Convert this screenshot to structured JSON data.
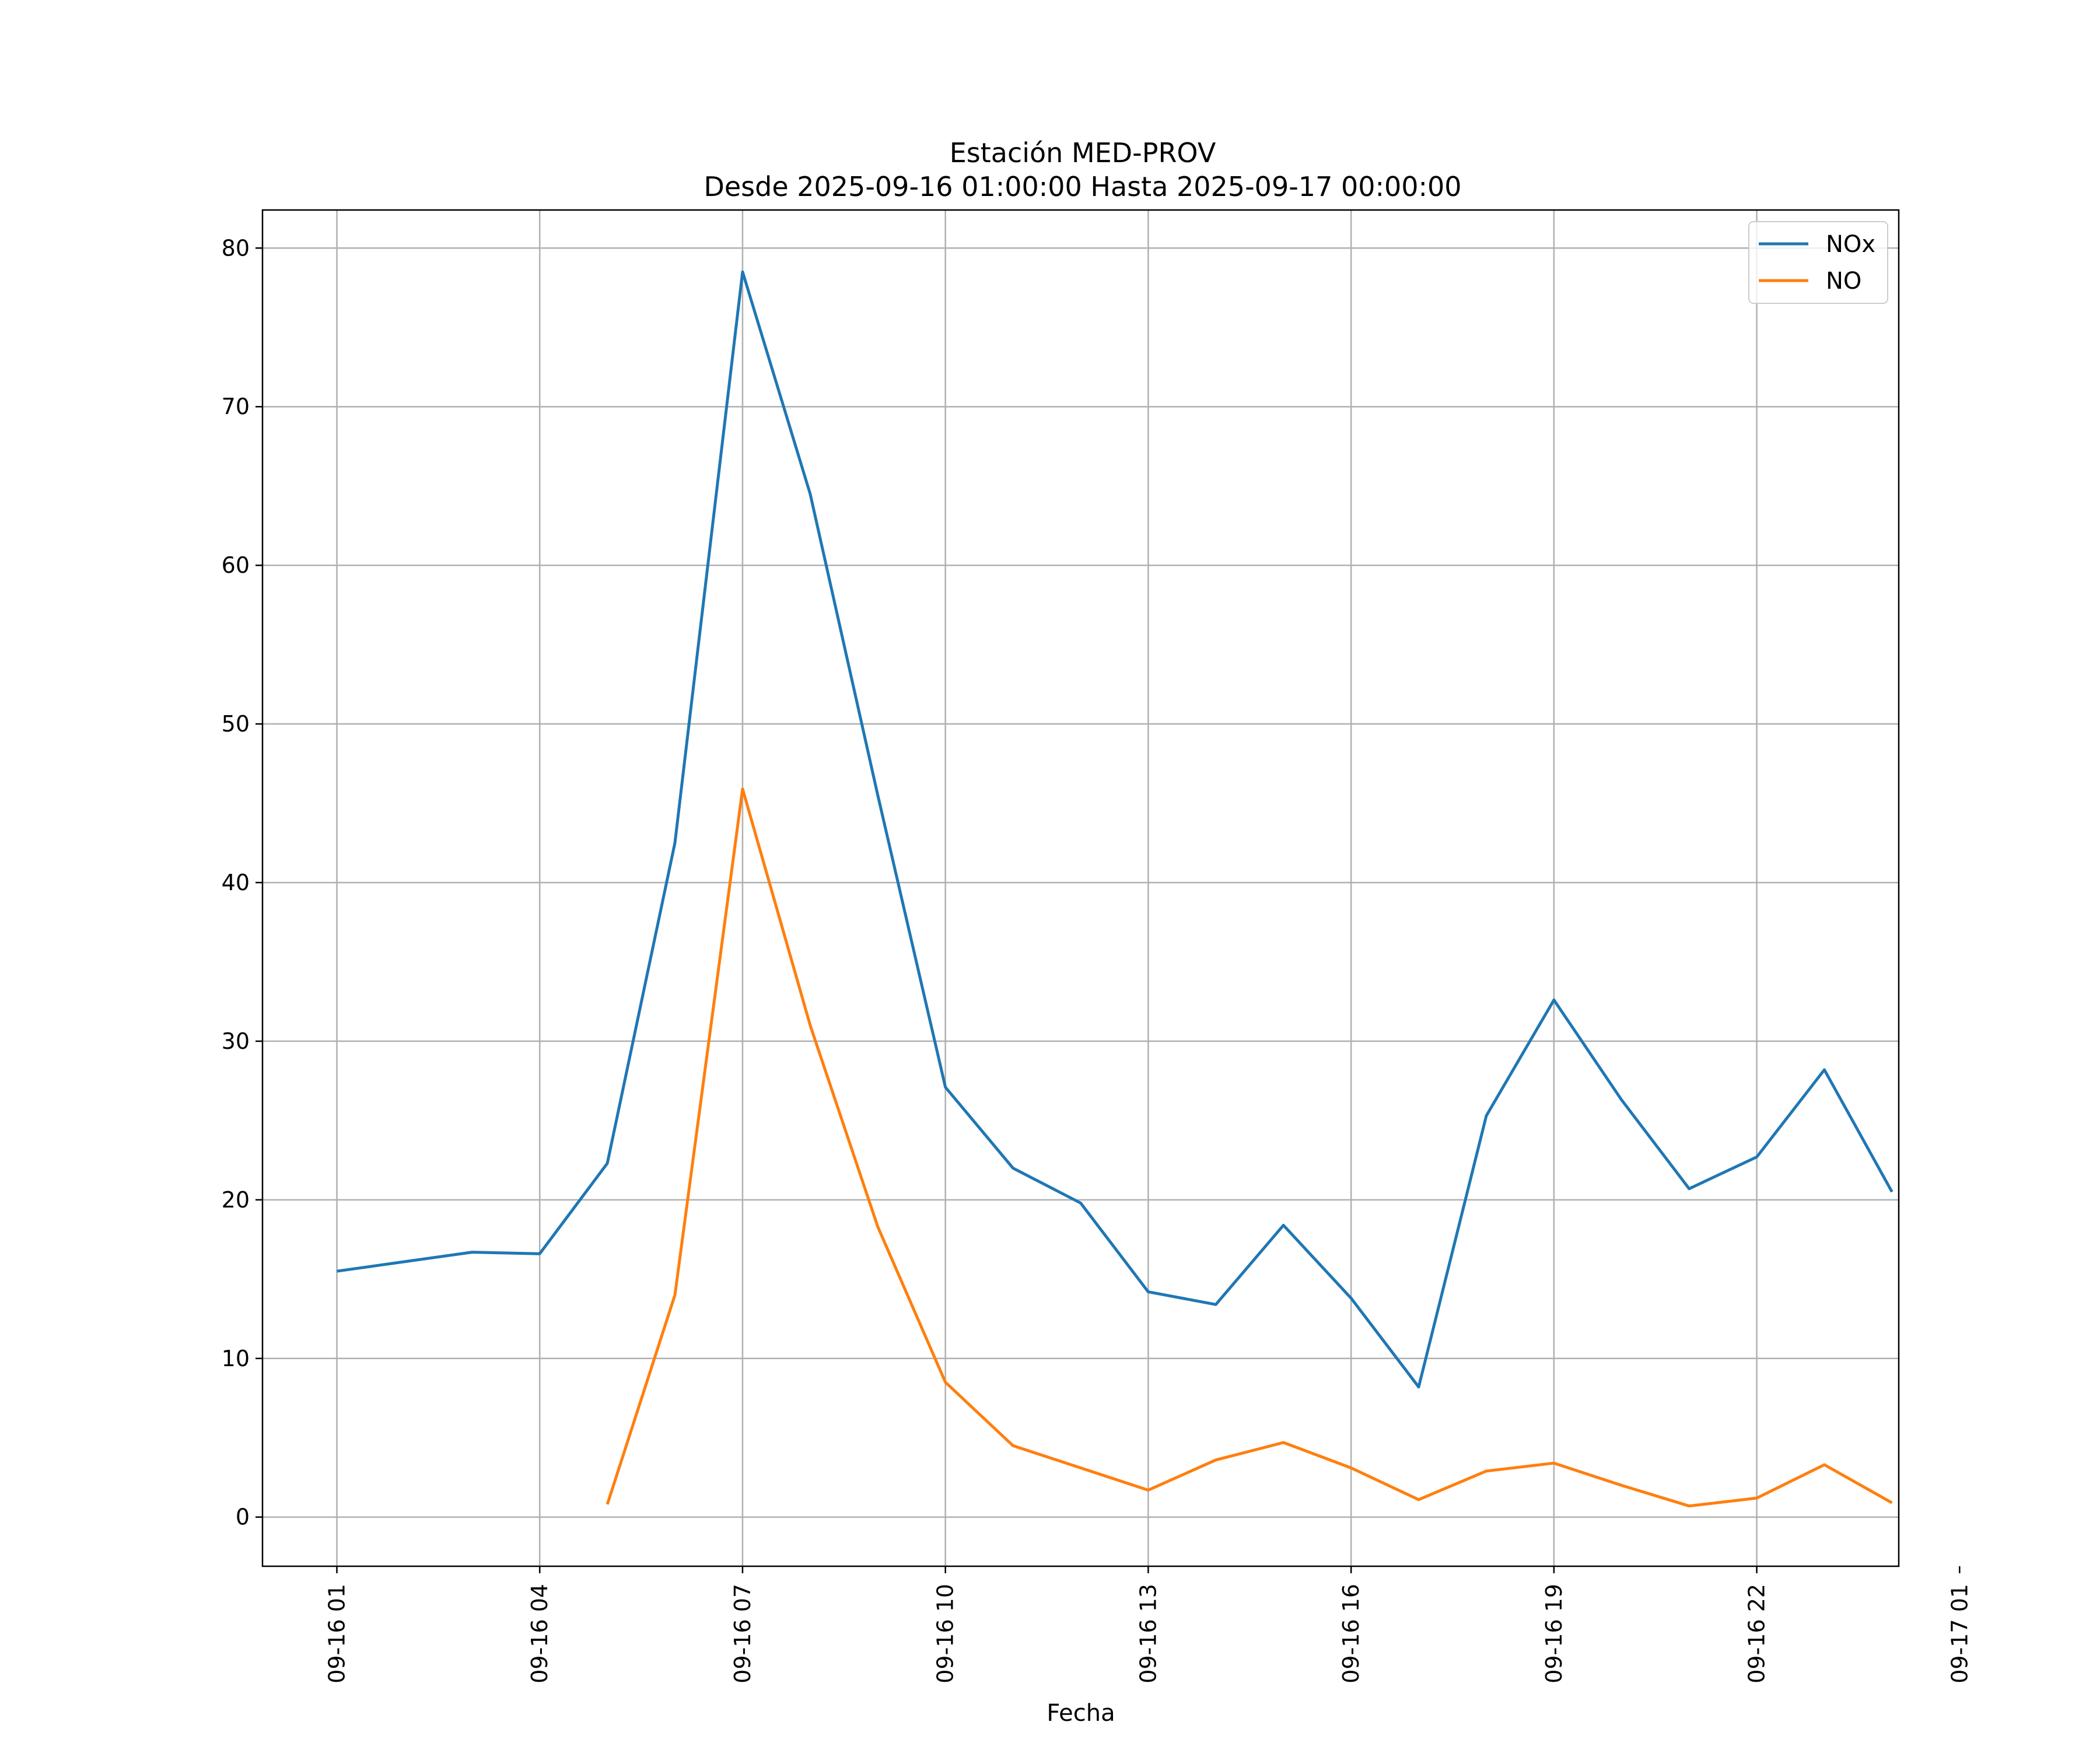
{
  "chart_data": {
    "type": "line",
    "title": "Estación MED-PROV",
    "subtitle": "Desde 2025-09-16 01:00:00 Hasta 2025-09-17 00:00:00",
    "xlabel": "Fecha",
    "ylabel": "",
    "x_unit": "hours since 2025-09-16 00:00",
    "xlim": [
      -0.1,
      24.1
    ],
    "ylim": [
      -3.1,
      82.4
    ],
    "x_ticks": [
      {
        "value": 1,
        "label": "09-16 01"
      },
      {
        "value": 4,
        "label": "09-16 04"
      },
      {
        "value": 7,
        "label": "09-16 07"
      },
      {
        "value": 10,
        "label": "09-16 10"
      },
      {
        "value": 13,
        "label": "09-16 13"
      },
      {
        "value": 16,
        "label": "09-16 16"
      },
      {
        "value": 19,
        "label": "09-16 19"
      },
      {
        "value": 22,
        "label": "09-16 22"
      },
      {
        "value": 25,
        "label": "09-17 01"
      }
    ],
    "y_ticks": [
      0,
      10,
      20,
      30,
      40,
      50,
      60,
      70,
      80
    ],
    "grid": true,
    "legend_position": "top-right",
    "series": [
      {
        "name": "NOx",
        "color": "#1f77b4",
        "points": [
          [
            1,
            15.5
          ],
          [
            2,
            16.1
          ],
          [
            3,
            16.7
          ],
          [
            4,
            16.6
          ],
          [
            5,
            22.3
          ],
          [
            6,
            42.5
          ],
          [
            7,
            78.5
          ],
          [
            8,
            64.5
          ],
          [
            9,
            45.5
          ],
          [
            10,
            27.1
          ],
          [
            11,
            22.0
          ],
          [
            12,
            19.8
          ],
          [
            13,
            14.2
          ],
          [
            14,
            13.4
          ],
          [
            15,
            18.4
          ],
          [
            16,
            13.8
          ],
          [
            17,
            8.2
          ],
          [
            18,
            25.3
          ],
          [
            19,
            32.6
          ],
          [
            20,
            26.3
          ],
          [
            21,
            20.7
          ],
          [
            22,
            22.7
          ],
          [
            23,
            28.2
          ],
          [
            24,
            20.5
          ]
        ]
      },
      {
        "name": "NO",
        "color": "#ff7f0e",
        "points": [
          [
            5,
            0.8
          ],
          [
            6,
            14.0
          ],
          [
            7,
            45.9
          ],
          [
            8,
            31.0
          ],
          [
            9,
            18.3
          ],
          [
            10,
            8.5
          ],
          [
            11,
            4.5
          ],
          [
            12,
            3.1
          ],
          [
            13,
            1.7
          ],
          [
            14,
            3.6
          ],
          [
            15,
            4.7
          ],
          [
            16,
            3.1
          ],
          [
            17,
            1.1
          ],
          [
            18,
            2.9
          ],
          [
            19,
            3.4
          ],
          [
            20,
            2.0
          ],
          [
            21,
            0.7
          ],
          [
            22,
            1.2
          ],
          [
            23,
            3.3
          ],
          [
            24,
            0.9
          ]
        ]
      }
    ]
  }
}
